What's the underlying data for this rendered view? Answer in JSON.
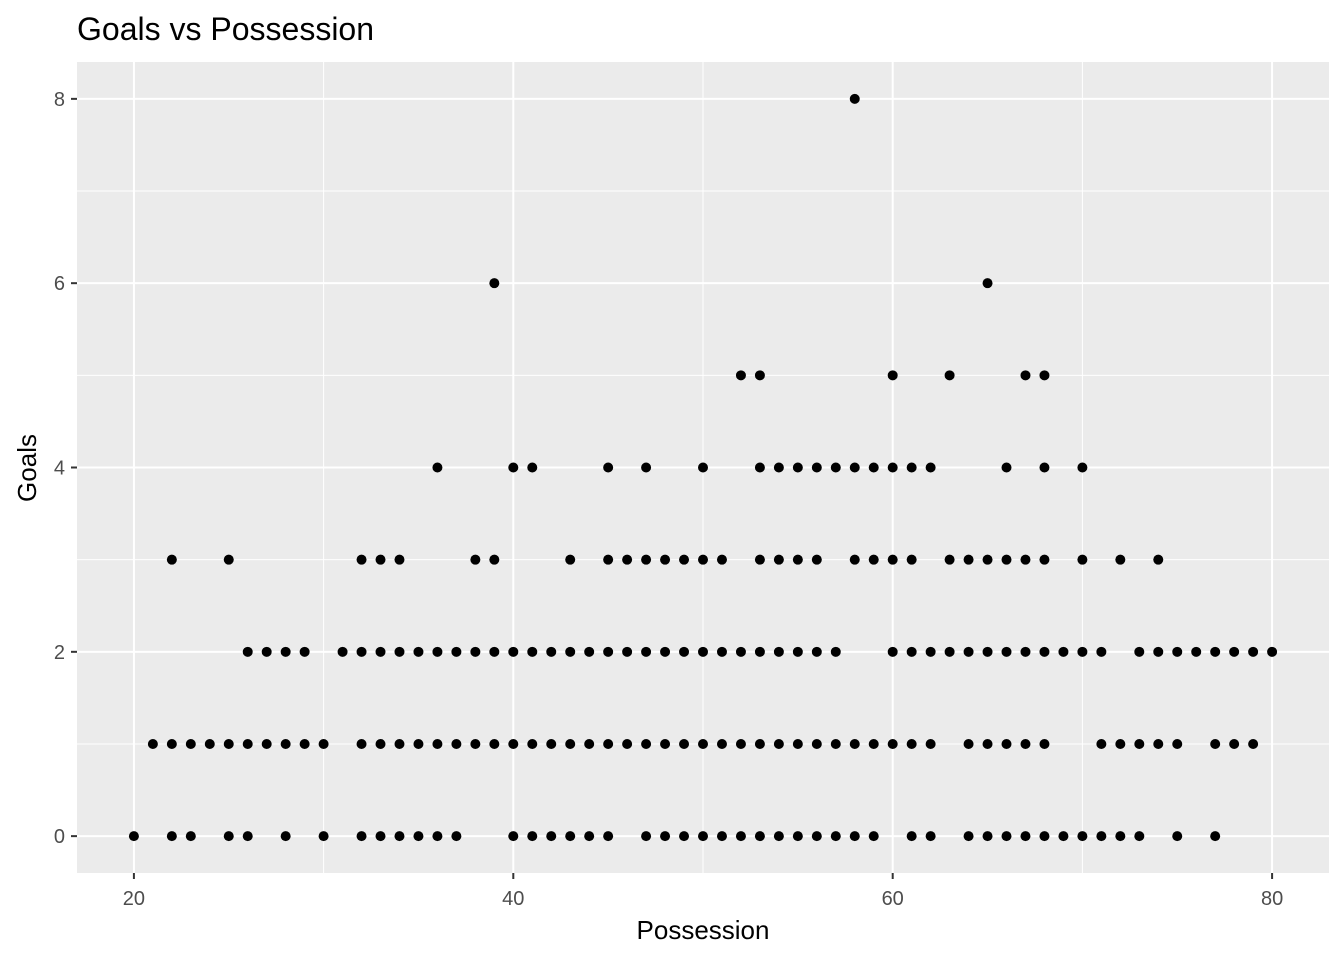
{
  "chart_data": {
    "type": "scatter",
    "title": "Goals vs Possession",
    "xlabel": "Possession",
    "ylabel": "Goals",
    "xlim": [
      17,
      83
    ],
    "ylim": [
      -0.4,
      8.4
    ],
    "x_ticks": [
      20,
      40,
      60,
      80
    ],
    "y_ticks": [
      0,
      2,
      4,
      6,
      8
    ],
    "grid": true,
    "legend": "none",
    "colors": {
      "panel": "#ebebeb",
      "grid": "#ffffff",
      "point": "#000000",
      "tick": "#4d4d4d"
    },
    "points": [
      [
        20,
        0
      ],
      [
        22,
        0
      ],
      [
        23,
        0
      ],
      [
        25,
        0
      ],
      [
        26,
        0
      ],
      [
        28,
        0
      ],
      [
        30,
        0
      ],
      [
        32,
        0
      ],
      [
        33,
        0
      ],
      [
        34,
        0
      ],
      [
        35,
        0
      ],
      [
        36,
        0
      ],
      [
        37,
        0
      ],
      [
        40,
        0
      ],
      [
        41,
        0
      ],
      [
        42,
        0
      ],
      [
        43,
        0
      ],
      [
        44,
        0
      ],
      [
        45,
        0
      ],
      [
        47,
        0
      ],
      [
        48,
        0
      ],
      [
        49,
        0
      ],
      [
        50,
        0
      ],
      [
        51,
        0
      ],
      [
        52,
        0
      ],
      [
        53,
        0
      ],
      [
        54,
        0
      ],
      [
        55,
        0
      ],
      [
        56,
        0
      ],
      [
        57,
        0
      ],
      [
        58,
        0
      ],
      [
        59,
        0
      ],
      [
        61,
        0
      ],
      [
        62,
        0
      ],
      [
        64,
        0
      ],
      [
        65,
        0
      ],
      [
        66,
        0
      ],
      [
        67,
        0
      ],
      [
        68,
        0
      ],
      [
        69,
        0
      ],
      [
        70,
        0
      ],
      [
        71,
        0
      ],
      [
        72,
        0
      ],
      [
        73,
        0
      ],
      [
        75,
        0
      ],
      [
        77,
        0
      ],
      [
        21,
        1
      ],
      [
        22,
        1
      ],
      [
        23,
        1
      ],
      [
        24,
        1
      ],
      [
        25,
        1
      ],
      [
        26,
        1
      ],
      [
        27,
        1
      ],
      [
        28,
        1
      ],
      [
        29,
        1
      ],
      [
        30,
        1
      ],
      [
        32,
        1
      ],
      [
        33,
        1
      ],
      [
        34,
        1
      ],
      [
        35,
        1
      ],
      [
        36,
        1
      ],
      [
        37,
        1
      ],
      [
        38,
        1
      ],
      [
        39,
        1
      ],
      [
        40,
        1
      ],
      [
        41,
        1
      ],
      [
        42,
        1
      ],
      [
        43,
        1
      ],
      [
        44,
        1
      ],
      [
        45,
        1
      ],
      [
        46,
        1
      ],
      [
        47,
        1
      ],
      [
        48,
        1
      ],
      [
        49,
        1
      ],
      [
        50,
        1
      ],
      [
        51,
        1
      ],
      [
        52,
        1
      ],
      [
        53,
        1
      ],
      [
        54,
        1
      ],
      [
        55,
        1
      ],
      [
        56,
        1
      ],
      [
        57,
        1
      ],
      [
        58,
        1
      ],
      [
        59,
        1
      ],
      [
        60,
        1
      ],
      [
        61,
        1
      ],
      [
        62,
        1
      ],
      [
        64,
        1
      ],
      [
        65,
        1
      ],
      [
        66,
        1
      ],
      [
        67,
        1
      ],
      [
        68,
        1
      ],
      [
        71,
        1
      ],
      [
        72,
        1
      ],
      [
        73,
        1
      ],
      [
        74,
        1
      ],
      [
        75,
        1
      ],
      [
        77,
        1
      ],
      [
        78,
        1
      ],
      [
        79,
        1
      ],
      [
        26,
        2
      ],
      [
        27,
        2
      ],
      [
        28,
        2
      ],
      [
        29,
        2
      ],
      [
        31,
        2
      ],
      [
        32,
        2
      ],
      [
        33,
        2
      ],
      [
        34,
        2
      ],
      [
        35,
        2
      ],
      [
        36,
        2
      ],
      [
        37,
        2
      ],
      [
        38,
        2
      ],
      [
        39,
        2
      ],
      [
        40,
        2
      ],
      [
        41,
        2
      ],
      [
        42,
        2
      ],
      [
        43,
        2
      ],
      [
        44,
        2
      ],
      [
        45,
        2
      ],
      [
        46,
        2
      ],
      [
        47,
        2
      ],
      [
        48,
        2
      ],
      [
        49,
        2
      ],
      [
        50,
        2
      ],
      [
        51,
        2
      ],
      [
        52,
        2
      ],
      [
        53,
        2
      ],
      [
        54,
        2
      ],
      [
        55,
        2
      ],
      [
        56,
        2
      ],
      [
        57,
        2
      ],
      [
        60,
        2
      ],
      [
        61,
        2
      ],
      [
        62,
        2
      ],
      [
        63,
        2
      ],
      [
        64,
        2
      ],
      [
        65,
        2
      ],
      [
        66,
        2
      ],
      [
        67,
        2
      ],
      [
        68,
        2
      ],
      [
        69,
        2
      ],
      [
        70,
        2
      ],
      [
        71,
        2
      ],
      [
        73,
        2
      ],
      [
        74,
        2
      ],
      [
        75,
        2
      ],
      [
        76,
        2
      ],
      [
        77,
        2
      ],
      [
        78,
        2
      ],
      [
        79,
        2
      ],
      [
        80,
        2
      ],
      [
        22,
        3
      ],
      [
        25,
        3
      ],
      [
        32,
        3
      ],
      [
        33,
        3
      ],
      [
        34,
        3
      ],
      [
        38,
        3
      ],
      [
        39,
        3
      ],
      [
        43,
        3
      ],
      [
        45,
        3
      ],
      [
        46,
        3
      ],
      [
        47,
        3
      ],
      [
        48,
        3
      ],
      [
        49,
        3
      ],
      [
        50,
        3
      ],
      [
        51,
        3
      ],
      [
        53,
        3
      ],
      [
        54,
        3
      ],
      [
        55,
        3
      ],
      [
        56,
        3
      ],
      [
        58,
        3
      ],
      [
        59,
        3
      ],
      [
        60,
        3
      ],
      [
        61,
        3
      ],
      [
        63,
        3
      ],
      [
        64,
        3
      ],
      [
        65,
        3
      ],
      [
        66,
        3
      ],
      [
        67,
        3
      ],
      [
        68,
        3
      ],
      [
        70,
        3
      ],
      [
        72,
        3
      ],
      [
        74,
        3
      ],
      [
        36,
        4
      ],
      [
        40,
        4
      ],
      [
        41,
        4
      ],
      [
        45,
        4
      ],
      [
        47,
        4
      ],
      [
        50,
        4
      ],
      [
        53,
        4
      ],
      [
        54,
        4
      ],
      [
        55,
        4
      ],
      [
        56,
        4
      ],
      [
        57,
        4
      ],
      [
        58,
        4
      ],
      [
        59,
        4
      ],
      [
        60,
        4
      ],
      [
        61,
        4
      ],
      [
        62,
        4
      ],
      [
        66,
        4
      ],
      [
        68,
        4
      ],
      [
        70,
        4
      ],
      [
        52,
        5
      ],
      [
        53,
        5
      ],
      [
        60,
        5
      ],
      [
        63,
        5
      ],
      [
        67,
        5
      ],
      [
        68,
        5
      ],
      [
        39,
        6
      ],
      [
        65,
        6
      ],
      [
        58,
        8
      ]
    ]
  }
}
